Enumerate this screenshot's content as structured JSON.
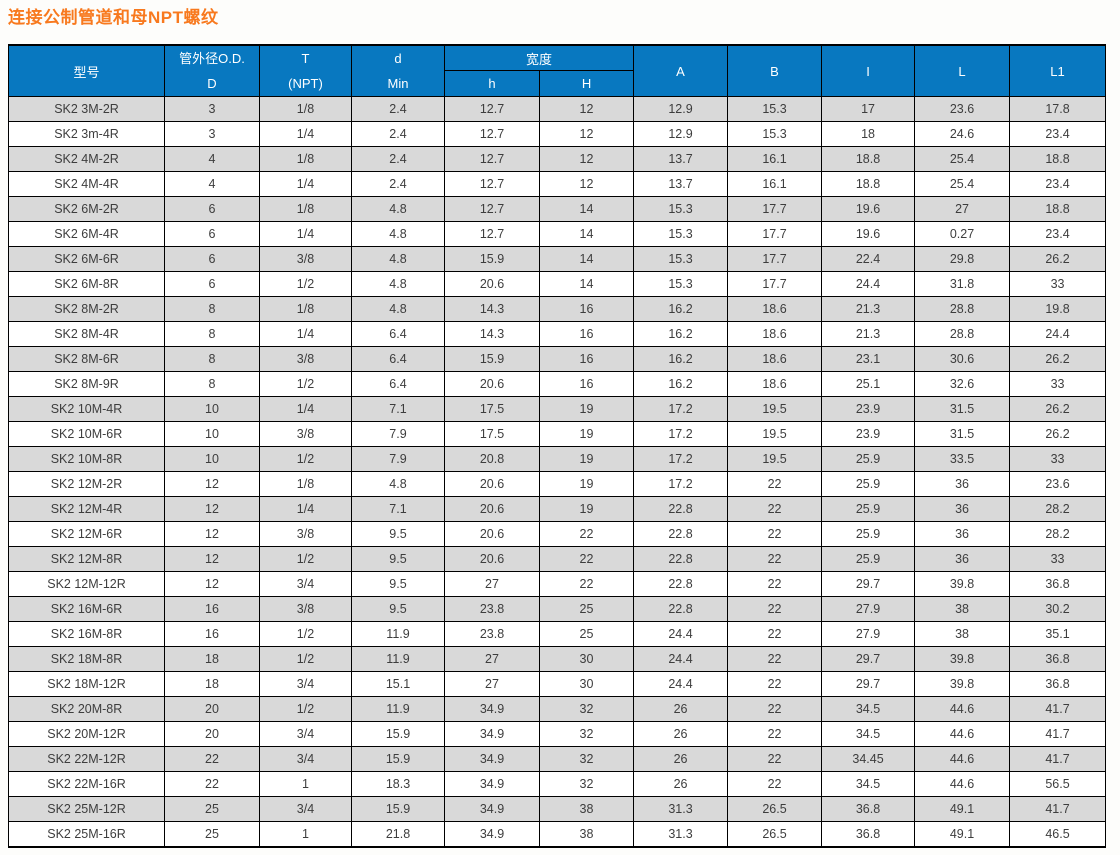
{
  "page": {
    "title": "连接公制管道和母NPT螺纹"
  },
  "colors": {
    "header_bg": "#0878c0",
    "header_text": "#ffffff",
    "stripe_bg": "#d9d9d9",
    "row_bg": "#ffffff",
    "border": "#000000",
    "title": "#f8791e",
    "cell_text": "#3d3d3d"
  },
  "table": {
    "headers": {
      "model": "型号",
      "od_line1": "管外径O.D.",
      "od_line2": "D",
      "t_line1": "T",
      "t_line2": "(NPT)",
      "d_line1": "d",
      "d_line2": "Min",
      "width_group": "宽度",
      "width_sub_h": "h",
      "width_sub_H": "H",
      "a": "A",
      "b": "B",
      "i": "I",
      "l": "L",
      "l1": "L1"
    },
    "column_keys": [
      "model",
      "od-d",
      "t-npt",
      "d-min",
      "h",
      "H",
      "A",
      "B",
      "I",
      "L",
      "L1"
    ],
    "rows": [
      [
        "SK2 3M-2R",
        "3",
        "1/8",
        "2.4",
        "12.7",
        "12",
        "12.9",
        "15.3",
        "17",
        "23.6",
        "17.8"
      ],
      [
        "SK2 3m-4R",
        "3",
        "1/4",
        "2.4",
        "12.7",
        "12",
        "12.9",
        "15.3",
        "18",
        "24.6",
        "23.4"
      ],
      [
        "SK2 4M-2R",
        "4",
        "1/8",
        "2.4",
        "12.7",
        "12",
        "13.7",
        "16.1",
        "18.8",
        "25.4",
        "18.8"
      ],
      [
        "SK2 4M-4R",
        "4",
        "1/4",
        "2.4",
        "12.7",
        "12",
        "13.7",
        "16.1",
        "18.8",
        "25.4",
        "23.4"
      ],
      [
        "SK2 6M-2R",
        "6",
        "1/8",
        "4.8",
        "12.7",
        "14",
        "15.3",
        "17.7",
        "19.6",
        "27",
        "18.8"
      ],
      [
        "SK2 6M-4R",
        "6",
        "1/4",
        "4.8",
        "12.7",
        "14",
        "15.3",
        "17.7",
        "19.6",
        "0.27",
        "23.4"
      ],
      [
        "SK2 6M-6R",
        "6",
        "3/8",
        "4.8",
        "15.9",
        "14",
        "15.3",
        "17.7",
        "22.4",
        "29.8",
        "26.2"
      ],
      [
        "SK2 6M-8R",
        "6",
        "1/2",
        "4.8",
        "20.6",
        "14",
        "15.3",
        "17.7",
        "24.4",
        "31.8",
        "33"
      ],
      [
        "SK2 8M-2R",
        "8",
        "1/8",
        "4.8",
        "14.3",
        "16",
        "16.2",
        "18.6",
        "21.3",
        "28.8",
        "19.8"
      ],
      [
        "SK2 8M-4R",
        "8",
        "1/4",
        "6.4",
        "14.3",
        "16",
        "16.2",
        "18.6",
        "21.3",
        "28.8",
        "24.4"
      ],
      [
        "SK2 8M-6R",
        "8",
        "3/8",
        "6.4",
        "15.9",
        "16",
        "16.2",
        "18.6",
        "23.1",
        "30.6",
        "26.2"
      ],
      [
        "SK2 8M-9R",
        "8",
        "1/2",
        "6.4",
        "20.6",
        "16",
        "16.2",
        "18.6",
        "25.1",
        "32.6",
        "33"
      ],
      [
        "SK2 10M-4R",
        "10",
        "1/4",
        "7.1",
        "17.5",
        "19",
        "17.2",
        "19.5",
        "23.9",
        "31.5",
        "26.2"
      ],
      [
        "SK2 10M-6R",
        "10",
        "3/8",
        "7.9",
        "17.5",
        "19",
        "17.2",
        "19.5",
        "23.9",
        "31.5",
        "26.2"
      ],
      [
        "SK2 10M-8R",
        "10",
        "1/2",
        "7.9",
        "20.8",
        "19",
        "17.2",
        "19.5",
        "25.9",
        "33.5",
        "33"
      ],
      [
        "SK2 12M-2R",
        "12",
        "1/8",
        "4.8",
        "20.6",
        "19",
        "17.2",
        "22",
        "25.9",
        "36",
        "23.6"
      ],
      [
        "SK2 12M-4R",
        "12",
        "1/4",
        "7.1",
        "20.6",
        "19",
        "22.8",
        "22",
        "25.9",
        "36",
        "28.2"
      ],
      [
        "SK2 12M-6R",
        "12",
        "3/8",
        "9.5",
        "20.6",
        "22",
        "22.8",
        "22",
        "25.9",
        "36",
        "28.2"
      ],
      [
        "SK2 12M-8R",
        "12",
        "1/2",
        "9.5",
        "20.6",
        "22",
        "22.8",
        "22",
        "25.9",
        "36",
        "33"
      ],
      [
        "SK2 12M-12R",
        "12",
        "3/4",
        "9.5",
        "27",
        "22",
        "22.8",
        "22",
        "29.7",
        "39.8",
        "36.8"
      ],
      [
        "SK2 16M-6R",
        "16",
        "3/8",
        "9.5",
        "23.8",
        "25",
        "22.8",
        "22",
        "27.9",
        "38",
        "30.2"
      ],
      [
        "SK2 16M-8R",
        "16",
        "1/2",
        "11.9",
        "23.8",
        "25",
        "24.4",
        "22",
        "27.9",
        "38",
        "35.1"
      ],
      [
        "SK2 18M-8R",
        "18",
        "1/2",
        "11.9",
        "27",
        "30",
        "24.4",
        "22",
        "29.7",
        "39.8",
        "36.8"
      ],
      [
        "SK2 18M-12R",
        "18",
        "3/4",
        "15.1",
        "27",
        "30",
        "24.4",
        "22",
        "29.7",
        "39.8",
        "36.8"
      ],
      [
        "SK2 20M-8R",
        "20",
        "1/2",
        "11.9",
        "34.9",
        "32",
        "26",
        "22",
        "34.5",
        "44.6",
        "41.7"
      ],
      [
        "SK2 20M-12R",
        "20",
        "3/4",
        "15.9",
        "34.9",
        "32",
        "26",
        "22",
        "34.5",
        "44.6",
        "41.7"
      ],
      [
        "SK2 22M-12R",
        "22",
        "3/4",
        "15.9",
        "34.9",
        "32",
        "26",
        "22",
        "34.45",
        "44.6",
        "41.7"
      ],
      [
        "SK2 22M-16R",
        "22",
        "1",
        "18.3",
        "34.9",
        "32",
        "26",
        "22",
        "34.5",
        "44.6",
        "56.5"
      ],
      [
        "SK2 25M-12R",
        "25",
        "3/4",
        "15.9",
        "34.9",
        "38",
        "31.3",
        "26.5",
        "36.8",
        "49.1",
        "41.7"
      ],
      [
        "SK2 25M-16R",
        "25",
        "1",
        "21.8",
        "34.9",
        "38",
        "31.3",
        "26.5",
        "36.8",
        "49.1",
        "46.5"
      ]
    ]
  }
}
